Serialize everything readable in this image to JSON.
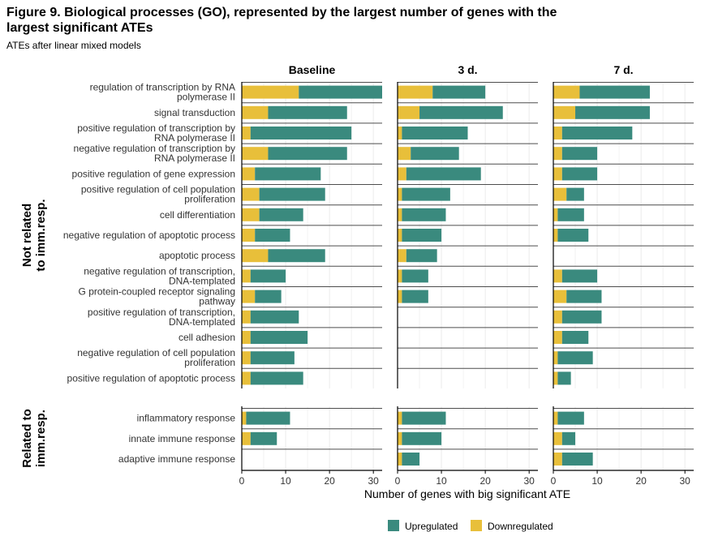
{
  "title": "Figure 9. Biological processes (GO), represented by the largest number of genes with the largest significant ATEs",
  "subtitle": "ATEs after linear mixed models",
  "colors": {
    "upregulated": "#3a8a7e",
    "downregulated": "#e8bf3a"
  },
  "chart_data": {
    "type": "bar",
    "orientation": "horizontal",
    "stacked": true,
    "facets": [
      "Baseline",
      "3 d.",
      "7 d."
    ],
    "row_groups": [
      {
        "label": "Not related\nto imm.resp.",
        "categories": [
          "regulation of transcription by RNA\npolymerase II",
          "signal transduction",
          "positive regulation of transcription by\nRNA polymerase II",
          "negative regulation of transcription by\nRNA polymerase II",
          "positive regulation of gene expression",
          "positive regulation of cell population\nproliferation",
          "cell differentiation",
          "negative regulation of apoptotic process",
          "apoptotic process",
          "negative regulation of transcription,\nDNA-templated",
          "G protein-coupled receptor signaling\npathway",
          "positive regulation of transcription,\nDNA-templated",
          "cell adhesion",
          "negative regulation of cell population\nproliferation",
          "positive regulation of apoptotic process"
        ]
      },
      {
        "label": "Related to\nimm.resp.",
        "categories": [
          "inflammatory response",
          "innate immune response",
          "adaptive immune response"
        ]
      }
    ],
    "series": [
      {
        "name": "Downregulated",
        "values": {
          "Baseline": [
            [
              13,
              6,
              2,
              6,
              3,
              4,
              4,
              3,
              6,
              2,
              3,
              2,
              2,
              2,
              2
            ],
            [
              1,
              2,
              0
            ]
          ],
          "3 d.": [
            [
              8,
              5,
              1,
              3,
              2,
              1,
              1,
              1,
              2,
              1,
              1,
              0,
              0,
              0,
              0
            ],
            [
              1,
              1,
              1
            ]
          ],
          "7 d.": [
            [
              6,
              5,
              2,
              2,
              2,
              3,
              1,
              1,
              0,
              2,
              3,
              2,
              2,
              1,
              1
            ],
            [
              1,
              2,
              2
            ]
          ]
        }
      },
      {
        "name": "Upregulated",
        "values": {
          "Baseline": [
            [
              19,
              18,
              23,
              18,
              15,
              15,
              10,
              8,
              13,
              8,
              6,
              11,
              13,
              10,
              12
            ],
            [
              10,
              6,
              0
            ]
          ],
          "3 d.": [
            [
              12,
              19,
              15,
              11,
              17,
              11,
              10,
              9,
              7,
              6,
              6,
              0,
              0,
              0,
              0
            ],
            [
              10,
              9,
              4
            ]
          ],
          "7 d.": [
            [
              16,
              17,
              16,
              8,
              8,
              4,
              6,
              7,
              0,
              8,
              8,
              9,
              6,
              8,
              3
            ],
            [
              6,
              3,
              7
            ]
          ]
        }
      }
    ],
    "xlabel": "Number of genes with big significant ATE",
    "xlim": [
      0,
      32
    ],
    "x_ticks": [
      0,
      10,
      20,
      30
    ],
    "legend": {
      "position": "bottom",
      "entries": [
        "Upregulated",
        "Downregulated"
      ]
    }
  }
}
